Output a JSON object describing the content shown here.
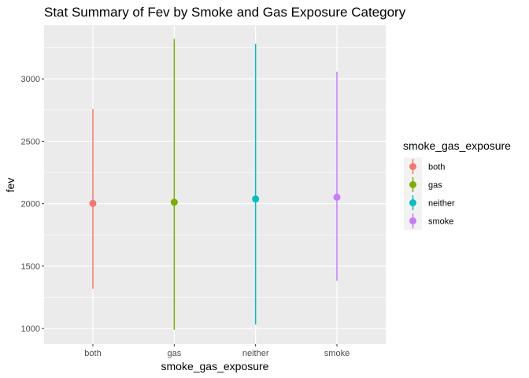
{
  "chart_data": {
    "type": "pointrange",
    "title": "Stat Summary of Fev by Smoke and Gas Exposure Category",
    "xlabel": "smoke_gas_exposure",
    "ylabel": "fev",
    "categories": [
      "both",
      "gas",
      "neither",
      "smoke"
    ],
    "y_ticks": [
      1000,
      1500,
      2000,
      2500,
      3000
    ],
    "ylim": [
      875,
      3430
    ],
    "series": [
      {
        "category": "both",
        "color": "#F8766D",
        "mean": 2002,
        "ymin": 1318,
        "ymax": 2760
      },
      {
        "category": "gas",
        "color": "#7CAE00",
        "mean": 2012,
        "ymin": 990,
        "ymax": 3320
      },
      {
        "category": "neither",
        "color": "#00BFC4",
        "mean": 2038,
        "ymin": 1032,
        "ymax": 3280
      },
      {
        "category": "smoke",
        "color": "#C77CFF",
        "mean": 2052,
        "ymin": 1382,
        "ymax": 3058
      }
    ],
    "legend": {
      "title": "smoke_gas_exposure",
      "position": "right",
      "items": [
        "both",
        "gas",
        "neither",
        "smoke"
      ]
    },
    "grid": true,
    "panel_background": "#EBEBEB"
  }
}
